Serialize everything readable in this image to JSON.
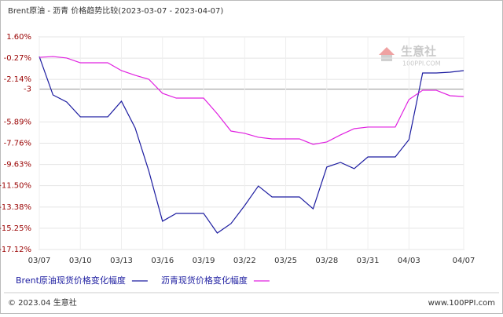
{
  "chart_data": {
    "type": "line",
    "title": "Brent原油 - 沥青 价格趋势比较(2023-03-07 - 2023-04-07)",
    "categories": [
      "03/07",
      null,
      null,
      "03/10",
      null,
      null,
      "03/13",
      null,
      null,
      "03/16",
      null,
      null,
      "03/19",
      null,
      null,
      "03/22",
      null,
      null,
      "03/25",
      null,
      null,
      "03/28",
      null,
      null,
      "03/31",
      null,
      null,
      "04/03",
      null,
      null,
      null,
      "04/07"
    ],
    "series": [
      {
        "name": "Brent原油现货价格变化幅度",
        "color": "#1c1ca0",
        "values": [
          -0.13,
          -3.51,
          -4.13,
          -5.44,
          -5.44,
          -5.44,
          -4.06,
          -6.41,
          -10.21,
          -14.63,
          -13.94,
          -13.94,
          -13.94,
          -15.67,
          -14.84,
          -13.25,
          -11.53,
          -12.49,
          -12.49,
          -12.49,
          -13.53,
          -9.86,
          -9.45,
          -10.0,
          -8.97,
          -8.97,
          -8.97,
          -7.45,
          -1.58,
          -1.58,
          -1.51,
          -1.37
        ]
      },
      {
        "name": "沥青现货价格变化幅度",
        "color": "#e020e0",
        "values": [
          -0.2,
          -0.13,
          -0.26,
          -0.68,
          -0.68,
          -0.68,
          -1.37,
          -1.78,
          -2.13,
          -3.37,
          -3.79,
          -3.79,
          -3.79,
          -5.17,
          -6.69,
          -6.89,
          -7.24,
          -7.38,
          -7.38,
          -7.38,
          -7.86,
          -7.65,
          -7.03,
          -6.48,
          -6.34,
          -6.34,
          -6.34,
          -3.92,
          -3.1,
          -3.1,
          -3.58,
          -3.65
        ]
      }
    ],
    "ylim": [
      -17.12,
      1.6
    ],
    "yticks": [
      {
        "value": 1.6,
        "label": "1.60%"
      },
      {
        "value": -0.27,
        "label": "-0.27%"
      },
      {
        "value": -2.14,
        "label": "-2.14%"
      },
      -3,
      {
        "value": -5.89,
        "label": "-5.89%"
      },
      {
        "value": -7.76,
        "label": "-7.76%"
      },
      {
        "value": -9.63,
        "label": "-9.63%"
      },
      {
        "value": -11.5,
        "label": "-11.50%"
      },
      {
        "value": -13.38,
        "label": "-13.38%"
      },
      {
        "value": -15.25,
        "label": "-15.25%"
      },
      {
        "value": -17.12,
        "label": "-17.12%"
      }
    ],
    "reference_line": -3,
    "grid": true,
    "watermark": {
      "name": "生意社",
      "site": "100PPI.COM"
    },
    "footer": {
      "left": "© 2023.04 生意社",
      "right": "www.100PPI.com"
    }
  }
}
